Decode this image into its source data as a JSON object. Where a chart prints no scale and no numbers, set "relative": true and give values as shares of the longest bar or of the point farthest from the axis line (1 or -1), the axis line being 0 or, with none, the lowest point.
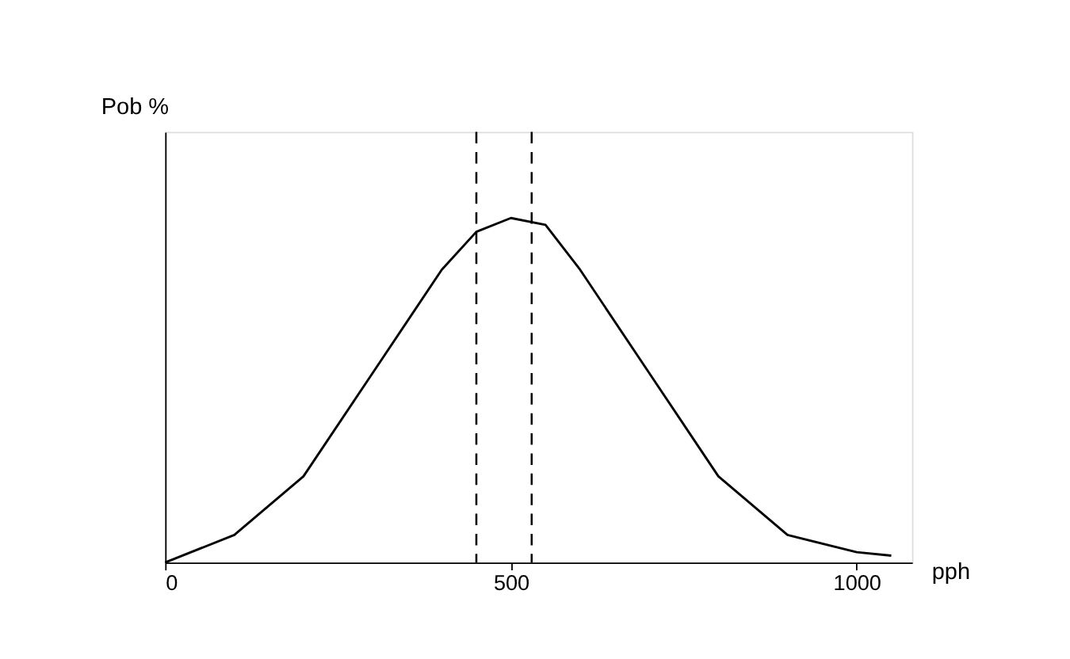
{
  "chart_data": {
    "type": "line",
    "relative": true,
    "xlabel": "pph",
    "ylabel": "Pob %",
    "x": [
      0,
      100,
      200,
      300,
      400,
      450,
      500,
      550,
      600,
      700,
      800,
      900,
      1000,
      1050
    ],
    "series": [
      {
        "color": "#000000",
        "values": [
          0,
          0.08,
          0.25,
          0.55,
          0.85,
          0.96,
          1,
          0.98,
          0.85,
          0.55,
          0.25,
          0.08,
          0.03,
          0.02
        ]
      }
    ],
    "xlim": [
      0,
      1080
    ],
    "xticks": [
      0,
      500,
      1000
    ],
    "ref_lines": [
      {
        "axis": "x",
        "value": 450,
        "line_style": "dashed",
        "color": "#000000"
      },
      {
        "axis": "x",
        "value": 530,
        "line_style": "dashed",
        "color": "#000000"
      }
    ],
    "grid": false,
    "marker": "none",
    "line_style": "solid"
  }
}
